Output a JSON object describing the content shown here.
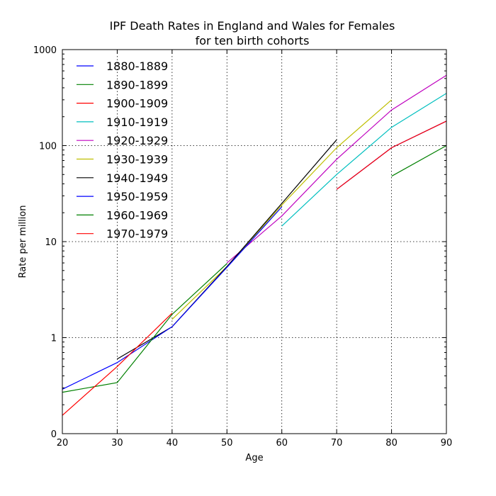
{
  "chart_data": {
    "type": "line",
    "title": [
      "IPF Death Rates in England and Wales for Females",
      "for ten birth cohorts"
    ],
    "xlabel": "Age",
    "ylabel": "Rate per million",
    "xlim": [
      20,
      90
    ],
    "ylim": [
      0.1,
      1000
    ],
    "yscale": "log",
    "xticks": [
      20,
      30,
      40,
      50,
      60,
      70,
      80,
      90
    ],
    "xtick_labels": [
      "20",
      "30",
      "40",
      "50",
      "60",
      "70",
      "80",
      "90"
    ],
    "yticks": [
      0.1,
      1,
      10,
      100,
      1000
    ],
    "ytick_labels": [
      "0",
      "1",
      "10",
      "100",
      "1000"
    ],
    "grid": true,
    "legend_position": "top-left",
    "series": [
      {
        "name": "1880-1889",
        "color": "#0000ff",
        "points": [
          [
            70,
            35
          ],
          [
            80,
            95
          ],
          [
            90,
            180
          ]
        ]
      },
      {
        "name": "1890-1899",
        "color": "#008000",
        "points": [
          [
            80,
            48
          ],
          [
            90,
            100
          ]
        ]
      },
      {
        "name": "1900-1909",
        "color": "#ff0000",
        "points": [
          [
            70,
            35
          ],
          [
            80,
            95
          ],
          [
            90,
            180
          ]
        ]
      },
      {
        "name": "1910-1919",
        "color": "#00bfbf",
        "points": [
          [
            60,
            14.5
          ],
          [
            70,
            50
          ],
          [
            80,
            155
          ],
          [
            90,
            350
          ]
        ]
      },
      {
        "name": "1920-1929",
        "color": "#bf00bf",
        "points": [
          [
            50,
            6
          ],
          [
            60,
            18.5
          ],
          [
            70,
            72
          ],
          [
            80,
            235
          ],
          [
            90,
            540
          ]
        ]
      },
      {
        "name": "1930-1939",
        "color": "#bfbf00",
        "points": [
          [
            40,
            1.55
          ],
          [
            50,
            5.5
          ],
          [
            60,
            24
          ],
          [
            70,
            95
          ],
          [
            80,
            300
          ]
        ]
      },
      {
        "name": "1940-1949",
        "color": "#000000",
        "points": [
          [
            30,
            0.6
          ],
          [
            40,
            1.3
          ],
          [
            50,
            5.5
          ],
          [
            60,
            25
          ],
          [
            70,
            115
          ]
        ]
      },
      {
        "name": "1950-1959",
        "color": "#0000ff",
        "points": [
          [
            20,
            0.29
          ],
          [
            30,
            0.55
          ],
          [
            40,
            1.3
          ],
          [
            50,
            5.4
          ],
          [
            60,
            23
          ]
        ]
      },
      {
        "name": "1960-1969",
        "color": "#008000",
        "points": [
          [
            20,
            0.27
          ],
          [
            30,
            0.34
          ],
          [
            40,
            1.75
          ],
          [
            50,
            5.9
          ]
        ]
      },
      {
        "name": "1970-1979",
        "color": "#ff0000",
        "points": [
          [
            20,
            0.155
          ],
          [
            30,
            0.5
          ],
          [
            40,
            1.8
          ]
        ]
      }
    ]
  }
}
